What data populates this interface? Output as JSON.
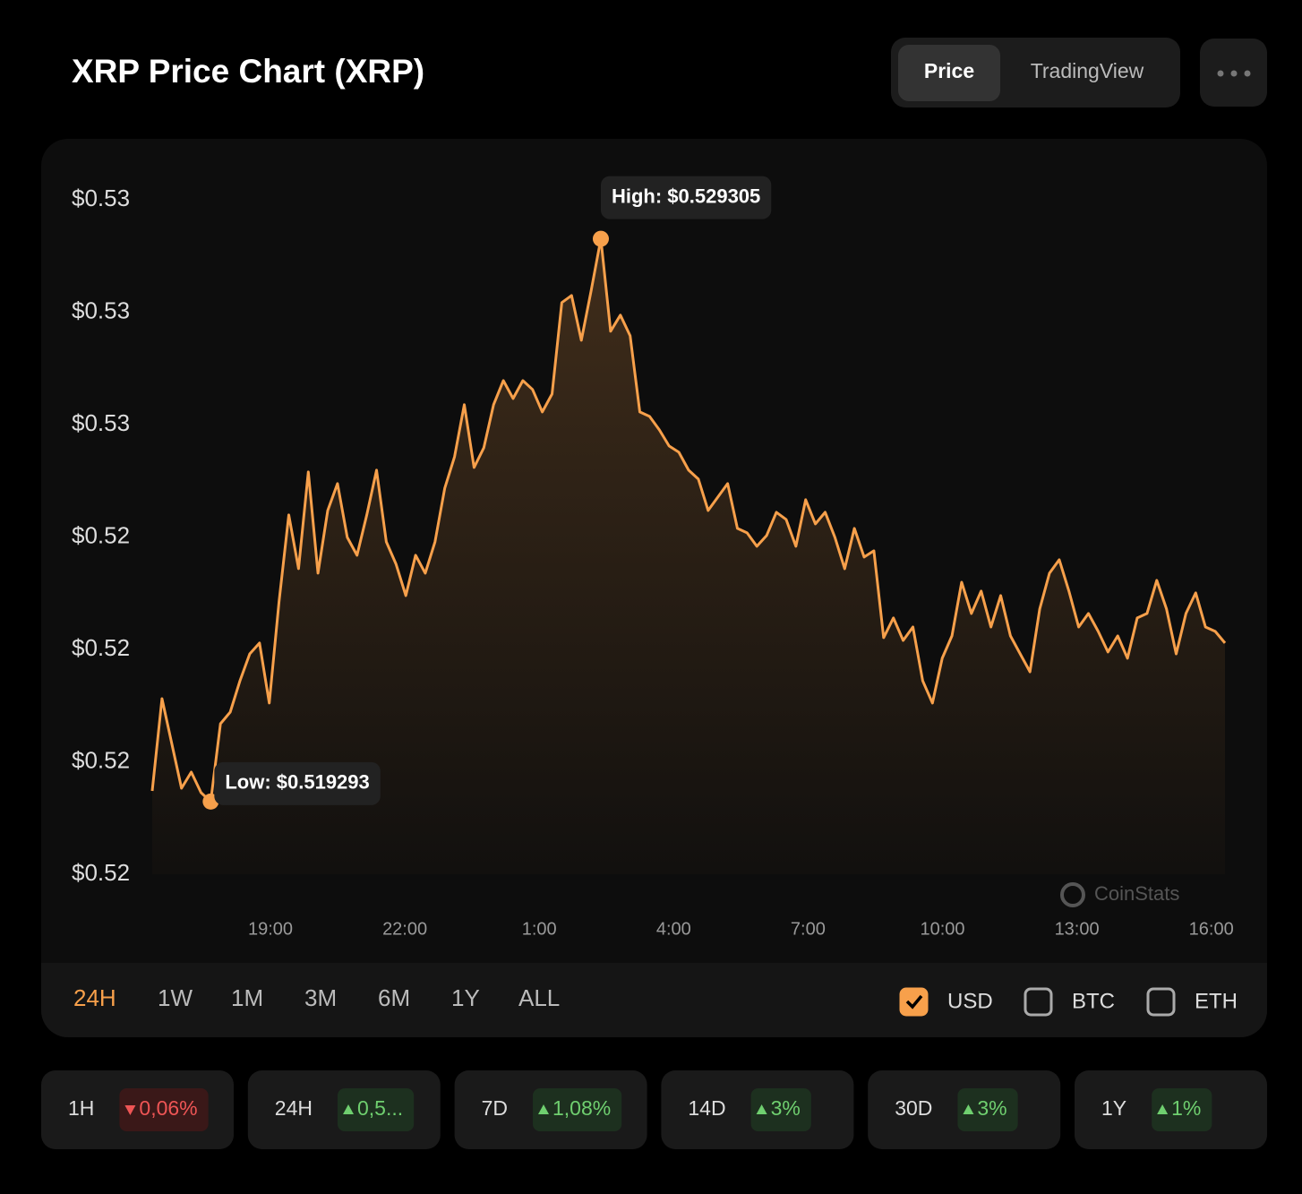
{
  "header": {
    "title": "XRP Price Chart (XRP)",
    "tabs": [
      "Price",
      "TradingView"
    ],
    "active_tab": 0
  },
  "chart_data": {
    "type": "line",
    "color": "#f7a04b",
    "values": [
      0.519482,
      0.521124,
      0.520327,
      0.51953,
      0.519817,
      0.519451,
      0.519293,
      0.520678,
      0.520885,
      0.521443,
      0.521921,
      0.522113,
      0.521045,
      0.522846,
      0.524392,
      0.523436,
      0.525157,
      0.523356,
      0.524472,
      0.52495,
      0.523993,
      0.523675,
      0.524392,
      0.525189,
      0.523914,
      0.523515,
      0.522957,
      0.523675,
      0.523356,
      0.523914,
      0.52487,
      0.525428,
      0.526353,
      0.525237,
      0.525587,
      0.526353,
      0.526783,
      0.526464,
      0.526783,
      0.526624,
      0.526225,
      0.526544,
      0.52817,
      0.528297,
      0.5275,
      0.528377,
      0.529305,
      0.52766,
      0.527947,
      0.52758,
      0.526225,
      0.526145,
      0.525906,
      0.525619,
      0.525508,
      0.525189,
      0.52503,
      0.524472,
      0.524711,
      0.52495,
      0.524153,
      0.524073,
      0.523834,
      0.524025,
      0.52444,
      0.524312,
      0.523834,
      0.524663,
      0.524233,
      0.52444,
      0.523993,
      0.523436,
      0.524153,
      0.523643,
      0.523754,
      0.522208,
      0.522559,
      0.52216,
      0.522399,
      0.521443,
      0.521045,
      0.521842,
      0.52224,
      0.523196,
      0.522639,
      0.523037,
      0.522399,
      0.522957,
      0.52224,
      0.521921,
      0.521602,
      0.522718,
      0.523356,
      0.523595,
      0.523037,
      0.522399,
      0.522639,
      0.52232,
      0.521953,
      0.52224,
      0.521842,
      0.522559,
      0.522639,
      0.523228,
      0.522718,
      0.521921,
      0.522639,
      0.523005,
      0.522399,
      0.52232,
      0.522113
    ],
    "ylim": [
      0.518,
      0.53
    ],
    "yticks": [
      {
        "value": 0.53,
        "label": "$0.53"
      },
      {
        "value": 0.528,
        "label": "$0.53"
      },
      {
        "value": 0.526,
        "label": "$0.53"
      },
      {
        "value": 0.524,
        "label": "$0.52"
      },
      {
        "value": 0.522,
        "label": "$0.52"
      },
      {
        "value": 0.52,
        "label": "$0.52"
      },
      {
        "value": 0.518,
        "label": "$0.52"
      }
    ],
    "xticks": [
      "19:00",
      "22:00",
      "1:00",
      "4:00",
      "7:00",
      "10:00",
      "13:00",
      "16:00"
    ],
    "annotations": [
      "High: $0.529305",
      "Low: $0.519293"
    ],
    "watermark": "CoinStats"
  },
  "ranges": [
    "24H",
    "1W",
    "1M",
    "3M",
    "6M",
    "1Y",
    "ALL"
  ],
  "active_range": 0,
  "currencies": [
    {
      "label": "USD",
      "checked": true
    },
    {
      "label": "BTC",
      "checked": false
    },
    {
      "label": "ETH",
      "checked": false
    }
  ],
  "changes": [
    {
      "period": "1H",
      "change": "0,06%",
      "direction": "down"
    },
    {
      "period": "24H",
      "change": "0,5...",
      "direction": "up"
    },
    {
      "period": "7D",
      "change": "1,08%",
      "direction": "up"
    },
    {
      "period": "14D",
      "change": "3%",
      "direction": "up"
    },
    {
      "period": "30D",
      "change": "3%",
      "direction": "up"
    },
    {
      "period": "1Y",
      "change": "1%",
      "direction": "up"
    }
  ]
}
